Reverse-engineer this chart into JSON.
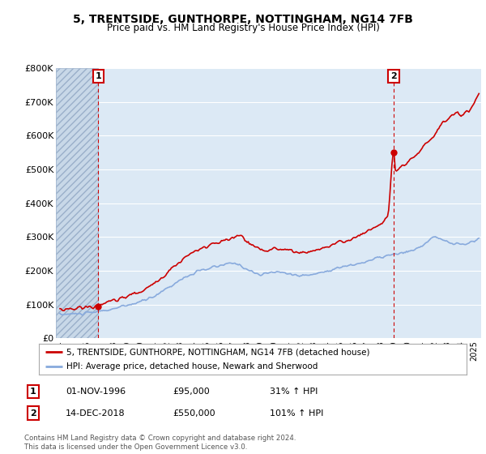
{
  "title": "5, TRENTSIDE, GUNTHORPE, NOTTINGHAM, NG14 7FB",
  "subtitle": "Price paid vs. HM Land Registry's House Price Index (HPI)",
  "ylim": [
    0,
    800000
  ],
  "yticks": [
    0,
    100000,
    200000,
    300000,
    400000,
    500000,
    600000,
    700000,
    800000
  ],
  "ytick_labels": [
    "£0",
    "£100K",
    "£200K",
    "£300K",
    "£400K",
    "£500K",
    "£600K",
    "£700K",
    "£800K"
  ],
  "background_color": "#ffffff",
  "plot_bg_color": "#dce9f5",
  "grid_color": "#ffffff",
  "red_line_color": "#cc0000",
  "blue_line_color": "#88aadd",
  "marker_color": "#cc0000",
  "dashed_line_color": "#cc0000",
  "sale1_x": 1996.87,
  "sale1_y": 95000,
  "sale1_label": "1",
  "sale1_date": "01-NOV-1996",
  "sale1_price": "£95,000",
  "sale1_hpi": "31% ↑ HPI",
  "sale2_x": 2018.96,
  "sale2_y": 550000,
  "sale2_label": "2",
  "sale2_date": "14-DEC-2018",
  "sale2_price": "£550,000",
  "sale2_hpi": "101% ↑ HPI",
  "legend_line1": "5, TRENTSIDE, GUNTHORPE, NOTTINGHAM, NG14 7FB (detached house)",
  "legend_line2": "HPI: Average price, detached house, Newark and Sherwood",
  "footnote": "Contains HM Land Registry data © Crown copyright and database right 2024.\nThis data is licensed under the Open Government Licence v3.0.",
  "xmin": 1993.7,
  "xmax": 2025.5,
  "hatch_xmin": 1993.7,
  "hatch_xmax": 1996.87,
  "title_fontsize": 10,
  "subtitle_fontsize": 8.5
}
